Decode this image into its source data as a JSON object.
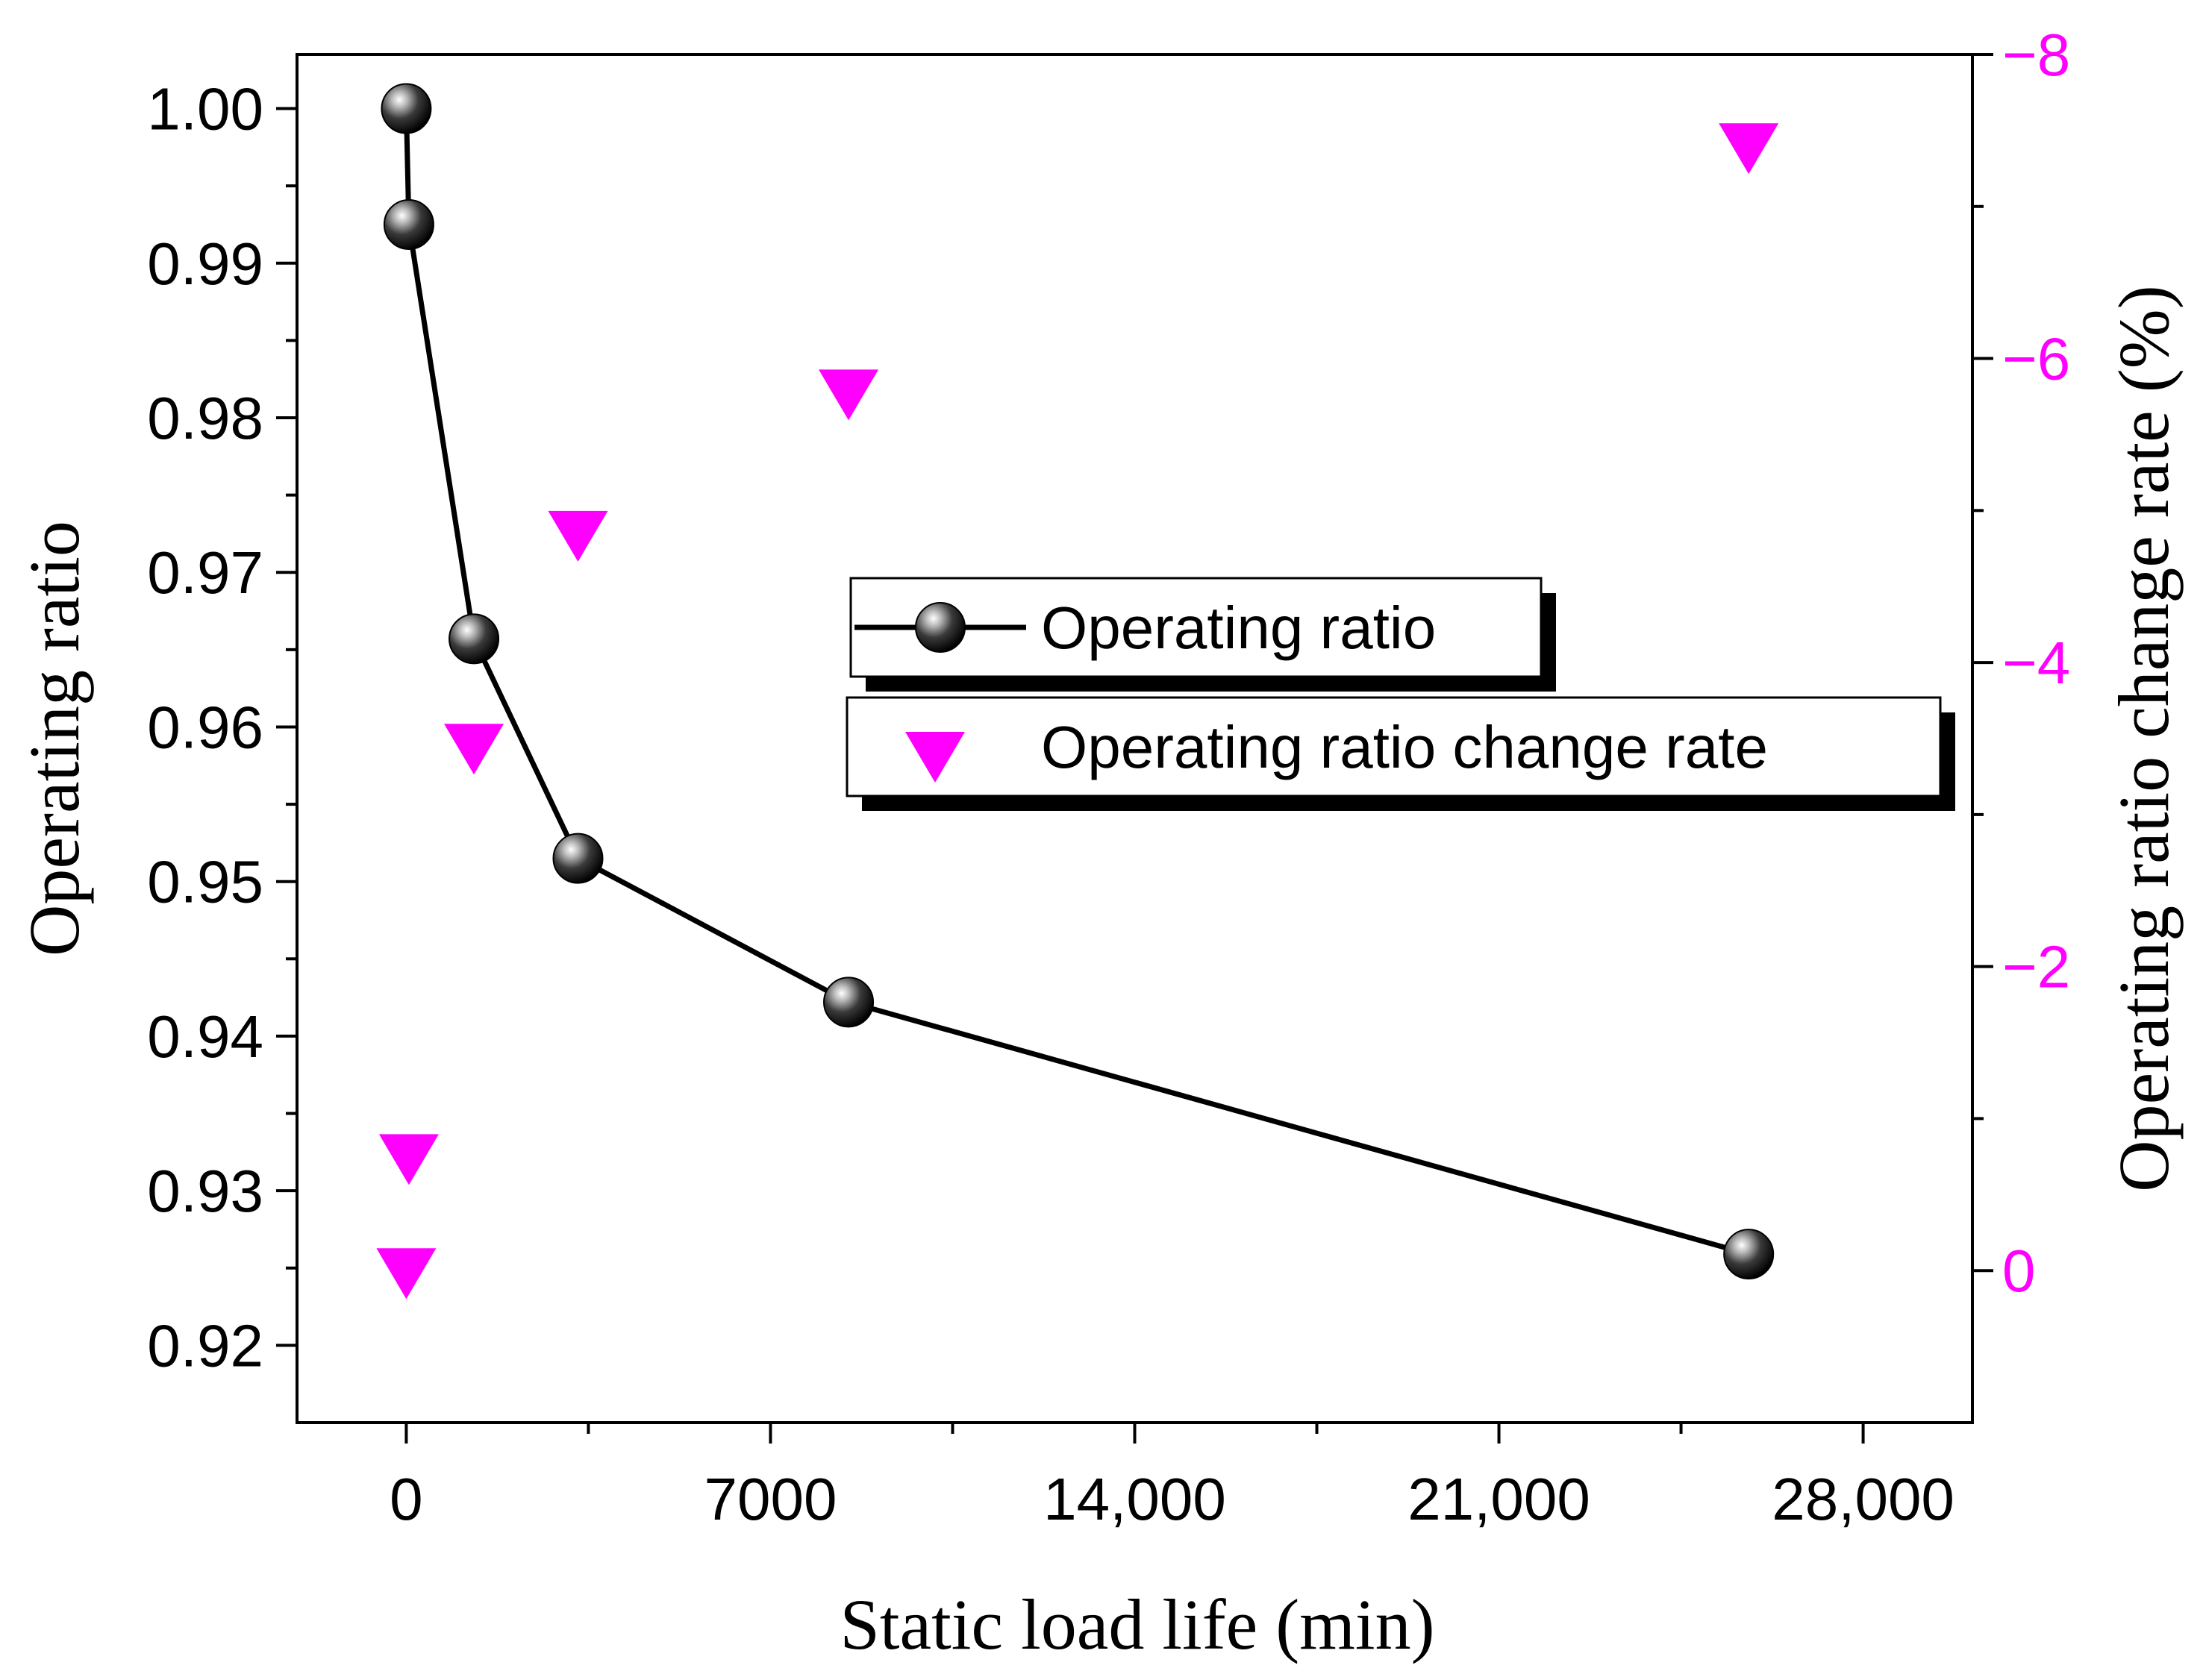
{
  "chart_data": {
    "type": "line",
    "title": "",
    "xlabel": "Static load life (min)",
    "ylabel": "Operating ratio",
    "y2label": "Operating ratio change rate (%)",
    "xlim": [
      -2100,
      30100
    ],
    "ylim": [
      0.915,
      1.0035
    ],
    "y2lim": [
      1.0,
      -8.0
    ],
    "x_ticks": [
      0,
      7000,
      14000,
      21000,
      28000
    ],
    "x_tick_labels": [
      "0",
      "7000",
      "14,000",
      "21,000",
      "28,000"
    ],
    "y_ticks": [
      0.92,
      0.93,
      0.94,
      0.95,
      0.96,
      0.97,
      0.98,
      0.99,
      1.0
    ],
    "y_tick_labels": [
      "0.92",
      "0.93",
      "0.94",
      "0.95",
      "0.96",
      "0.97",
      "0.98",
      "0.99",
      "1.00"
    ],
    "y2_ticks": [
      0,
      -2,
      -4,
      -6,
      -8
    ],
    "y2_tick_labels": [
      "0",
      "−2",
      "−4",
      "−6",
      "−8"
    ],
    "grid": false,
    "legend_position": "center-right",
    "series": [
      {
        "name": "Operating ratio",
        "axis": "left",
        "style": "line-with-sphere-markers",
        "color": "#000000",
        "x": [
          0,
          50,
          1300,
          3300,
          8500,
          25800
        ],
        "values": [
          1.0,
          0.9925,
          0.9657,
          0.9515,
          0.9422,
          0.9259
        ]
      },
      {
        "name": "Operating ratio change rate",
        "axis": "right",
        "style": "down-triangle-markers",
        "color": "#ff00ff",
        "x": [
          0,
          50,
          1300,
          3300,
          8500,
          25800
        ],
        "values": [
          0,
          -0.75,
          -3.45,
          -4.85,
          -5.78,
          -7.4
        ]
      }
    ]
  }
}
